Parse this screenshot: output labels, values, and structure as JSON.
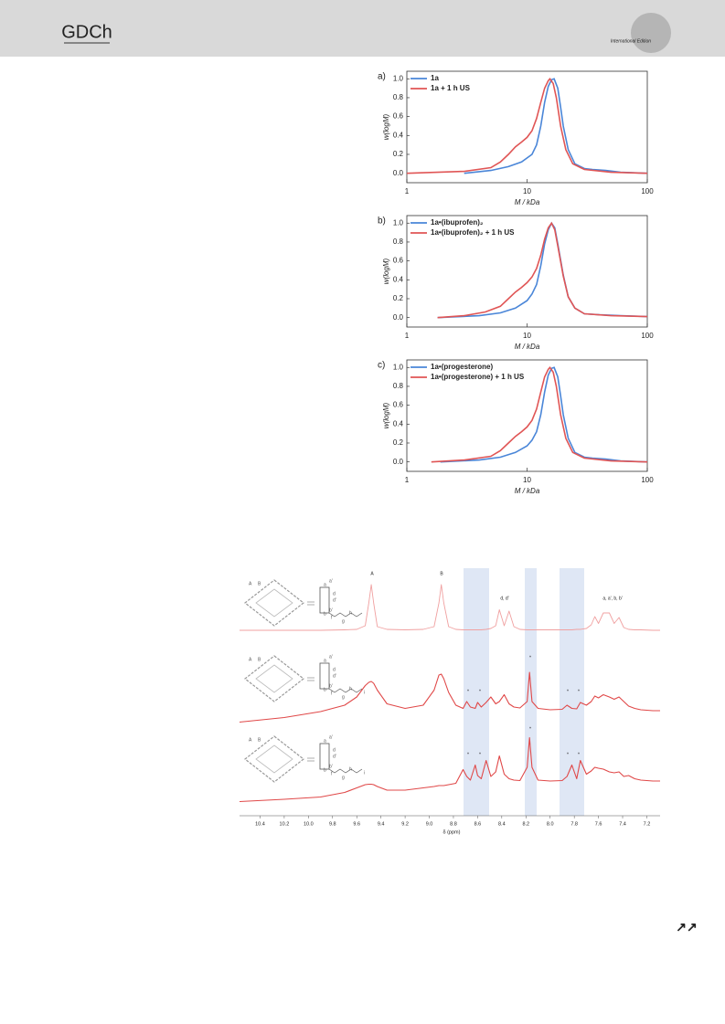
{
  "header": {
    "logo": "GDCh",
    "edition": "International Edition"
  },
  "footer": {
    "arrows": "↗↗"
  },
  "chart_data": [
    {
      "type": "line",
      "label": "a)",
      "x_label": "M / kDa",
      "y_label": "w(logM)",
      "log_x": true,
      "xlim": [
        1,
        100
      ],
      "xticks": [
        1,
        10,
        100
      ],
      "ylim": [
        -0.1,
        1.08
      ],
      "yticks": [
        {
          "value": 0,
          "label": "0.0"
        },
        0.2,
        0.4,
        0.6,
        0.8,
        {
          "value": 1,
          "label": "1.0"
        }
      ],
      "series": [
        {
          "name": "1a",
          "color": "#4a86d8",
          "x": [
            3,
            5,
            7,
            9,
            11,
            12,
            13,
            14,
            15,
            16,
            16.8,
            18,
            19,
            20,
            22,
            25,
            30,
            35,
            45,
            60,
            100
          ],
          "values": [
            0,
            0.03,
            0.07,
            0.12,
            0.2,
            0.3,
            0.5,
            0.75,
            0.92,
            0.99,
            1,
            0.9,
            0.7,
            0.5,
            0.25,
            0.1,
            0.05,
            0.04,
            0.03,
            0.01,
            0
          ]
        },
        {
          "name": "1a + 1 h US",
          "color": "#e05555",
          "x": [
            1,
            3,
            5,
            6,
            7,
            8,
            9,
            10,
            11,
            12,
            13,
            14,
            15,
            15.5,
            16.5,
            17.5,
            19,
            21,
            24,
            30,
            50,
            100
          ],
          "values": [
            0,
            0.02,
            0.06,
            0.12,
            0.2,
            0.28,
            0.33,
            0.38,
            0.45,
            0.58,
            0.75,
            0.9,
            0.98,
            1,
            0.95,
            0.8,
            0.5,
            0.25,
            0.1,
            0.04,
            0.01,
            0
          ]
        }
      ]
    },
    {
      "type": "line",
      "label": "b)",
      "x_label": "M / kDa",
      "y_label": "w(logM)",
      "log_x": true,
      "xlim": [
        1,
        100
      ],
      "xticks": [
        1,
        10,
        100
      ],
      "ylim": [
        -0.1,
        1.08
      ],
      "yticks": [
        {
          "value": 0,
          "label": "0.0"
        },
        0.2,
        0.4,
        0.6,
        0.8,
        {
          "value": 1,
          "label": "1.0"
        }
      ],
      "series": [
        {
          "name": "1a•(ibuprofen)₂",
          "color": "#4a86d8",
          "x": [
            1.8,
            4,
            6,
            8,
            10,
            11,
            12,
            13,
            14,
            15,
            16,
            17,
            18,
            20,
            22,
            25,
            30,
            40,
            60,
            100
          ],
          "values": [
            0,
            0.02,
            0.05,
            0.1,
            0.18,
            0.25,
            0.35,
            0.55,
            0.78,
            0.93,
            1,
            0.95,
            0.78,
            0.45,
            0.22,
            0.1,
            0.04,
            0.03,
            0.02,
            0.01
          ]
        },
        {
          "name": "1a•(ibuprofen)₂ + 1 h US",
          "color": "#e05555",
          "x": [
            1.8,
            3,
            4.5,
            6,
            7,
            8,
            9,
            10,
            11,
            12,
            13,
            14,
            15,
            16,
            17,
            18,
            20,
            22,
            25,
            30,
            50,
            100
          ],
          "values": [
            0,
            0.02,
            0.06,
            0.12,
            0.2,
            0.27,
            0.32,
            0.37,
            0.43,
            0.52,
            0.66,
            0.83,
            0.95,
            1,
            0.93,
            0.76,
            0.44,
            0.22,
            0.1,
            0.04,
            0.02,
            0.01
          ]
        }
      ]
    },
    {
      "type": "line",
      "label": "c)",
      "x_label": "M / kDa",
      "y_label": "w(logM)",
      "log_x": true,
      "xlim": [
        1,
        100
      ],
      "xticks": [
        1,
        10,
        100
      ],
      "ylim": [
        -0.1,
        1.08
      ],
      "yticks": [
        {
          "value": 0,
          "label": "0.0"
        },
        0.2,
        0.4,
        0.6,
        0.8,
        {
          "value": 1,
          "label": "1.0"
        }
      ],
      "series": [
        {
          "name": "1a•(progesterone)",
          "color": "#4a86d8",
          "x": [
            1.9,
            4,
            6,
            8,
            10,
            11,
            12,
            13,
            14,
            15,
            16,
            16.8,
            18,
            19,
            20,
            22,
            25,
            30,
            35,
            45,
            60,
            100
          ],
          "values": [
            0,
            0.02,
            0.05,
            0.1,
            0.17,
            0.23,
            0.32,
            0.5,
            0.74,
            0.92,
            0.99,
            1,
            0.9,
            0.7,
            0.5,
            0.25,
            0.1,
            0.05,
            0.04,
            0.03,
            0.01,
            0
          ]
        },
        {
          "name": "1a•(progesterone) + 1 h US",
          "color": "#e05555",
          "x": [
            1.6,
            3,
            5,
            6,
            7,
            8,
            9,
            10,
            11,
            12,
            13,
            14,
            15,
            15.5,
            16.5,
            17.5,
            19,
            21,
            24,
            30,
            50,
            100
          ],
          "values": [
            0,
            0.02,
            0.06,
            0.12,
            0.2,
            0.27,
            0.32,
            0.37,
            0.44,
            0.56,
            0.74,
            0.9,
            0.98,
            1,
            0.95,
            0.8,
            0.5,
            0.25,
            0.1,
            0.04,
            0.01,
            0
          ]
        }
      ]
    },
    {
      "type": "spectrum",
      "x_label": "δ (ppm)",
      "xlim": [
        10.57,
        7.09
      ],
      "xticks": [
        10.4,
        10.2,
        {
          "value": 10,
          "label": "10.0"
        },
        9.8,
        9.6,
        9.4,
        9.2,
        {
          "value": 9,
          "label": "9.0"
        },
        8.8,
        8.6,
        8.4,
        8.2,
        {
          "value": 8,
          "label": "8.0"
        },
        7.8,
        7.6,
        7.4,
        7.2
      ],
      "x": [
        10.57,
        10.2,
        9.9,
        9.7,
        9.6,
        9.53,
        9.5,
        9.48,
        9.46,
        9.43,
        9.35,
        9.2,
        9.05,
        8.96,
        8.92,
        8.9,
        8.88,
        8.84,
        8.78,
        8.72,
        8.69,
        8.66,
        8.62,
        8.6,
        8.57,
        8.53,
        8.49,
        8.45,
        8.42,
        8.38,
        8.34,
        8.3,
        8.25,
        8.19,
        8.17,
        8.15,
        8.1,
        8,
        7.9,
        7.86,
        7.82,
        7.78,
        7.75,
        7.7,
        7.66,
        7.63,
        7.6,
        7.56,
        7.51,
        7.47,
        7.43,
        7.39,
        7.35,
        7.3,
        7.25,
        7.15,
        7.09
      ],
      "series": [
        {
          "color": "#f0a0a0",
          "values": [
            0,
            0,
            0,
            0.01,
            0.02,
            0.1,
            0.6,
            1,
            0.6,
            0.08,
            0.02,
            0.01,
            0.02,
            0.08,
            0.6,
            1,
            0.6,
            0.08,
            0.02,
            0.01,
            0.01,
            0.01,
            0.01,
            0.01,
            0.01,
            0.02,
            0.04,
            0.1,
            0.45,
            0.1,
            0.42,
            0.08,
            0.02,
            0.01,
            0.01,
            0.01,
            0.01,
            0.01,
            0.01,
            0.01,
            0.01,
            0.02,
            0.02,
            0.04,
            0.12,
            0.3,
            0.15,
            0.38,
            0.38,
            0.15,
            0.28,
            0.06,
            0.02,
            0.01,
            0.01,
            0,
            0
          ]
        },
        {
          "color": "#e04848",
          "values": [
            -0.25,
            -0.15,
            -0.02,
            0.12,
            0.3,
            0.55,
            0.62,
            0.64,
            0.6,
            0.45,
            0.15,
            0.05,
            0.12,
            0.45,
            0.78,
            0.8,
            0.7,
            0.4,
            0.12,
            0.05,
            0.2,
            0.08,
            0.05,
            0.18,
            0.08,
            0.18,
            0.3,
            0.15,
            0.2,
            0.35,
            0.15,
            0.08,
            0.06,
            0.2,
            0.84,
            0.2,
            0.05,
            0.02,
            0.03,
            0.12,
            0.05,
            0.04,
            0.18,
            0.12,
            0.2,
            0.32,
            0.28,
            0.35,
            0.3,
            0.25,
            0.3,
            0.2,
            0.1,
            0.05,
            0.02,
            0,
            0
          ]
        },
        {
          "color": "#e04848",
          "values": [
            -0.45,
            -0.4,
            -0.35,
            -0.25,
            -0.15,
            -0.08,
            -0.07,
            -0.07,
            -0.08,
            -0.12,
            -0.2,
            -0.2,
            -0.15,
            -0.12,
            -0.1,
            -0.1,
            -0.1,
            -0.08,
            -0.05,
            0.25,
            0.1,
            0.02,
            0.35,
            0.12,
            0.05,
            0.45,
            0.1,
            0.2,
            0.55,
            0.15,
            0.05,
            0.02,
            0.01,
            0.3,
            0.95,
            0.3,
            0.02,
            0,
            0.01,
            0.1,
            0.35,
            0.05,
            0.45,
            0.15,
            0.22,
            0.3,
            0.28,
            0.26,
            0.2,
            0.18,
            0.2,
            0.1,
            0.12,
            0.05,
            0.02,
            0,
            0
          ]
        }
      ],
      "annotations": [
        "A",
        "B",
        "d, d'",
        "a, a', b, b'",
        "*",
        "*",
        "*",
        "*",
        "*",
        "*",
        "*",
        "*",
        "*",
        "*"
      ],
      "structures": [
        {
          "labels": [
            "A",
            "B",
            "a",
            "a'",
            "b",
            "b'",
            "d",
            "d'",
            "f",
            "g",
            "h"
          ]
        },
        {
          "labels": [
            "A",
            "B",
            "a",
            "a'",
            "b",
            "b'",
            "d",
            "d'",
            "f",
            "g",
            "h",
            "i"
          ]
        },
        {
          "labels": [
            "A",
            "B",
            "a",
            "a'",
            "b",
            "b'",
            "d",
            "d'",
            "f",
            "g",
            "h",
            "i"
          ]
        }
      ]
    }
  ]
}
